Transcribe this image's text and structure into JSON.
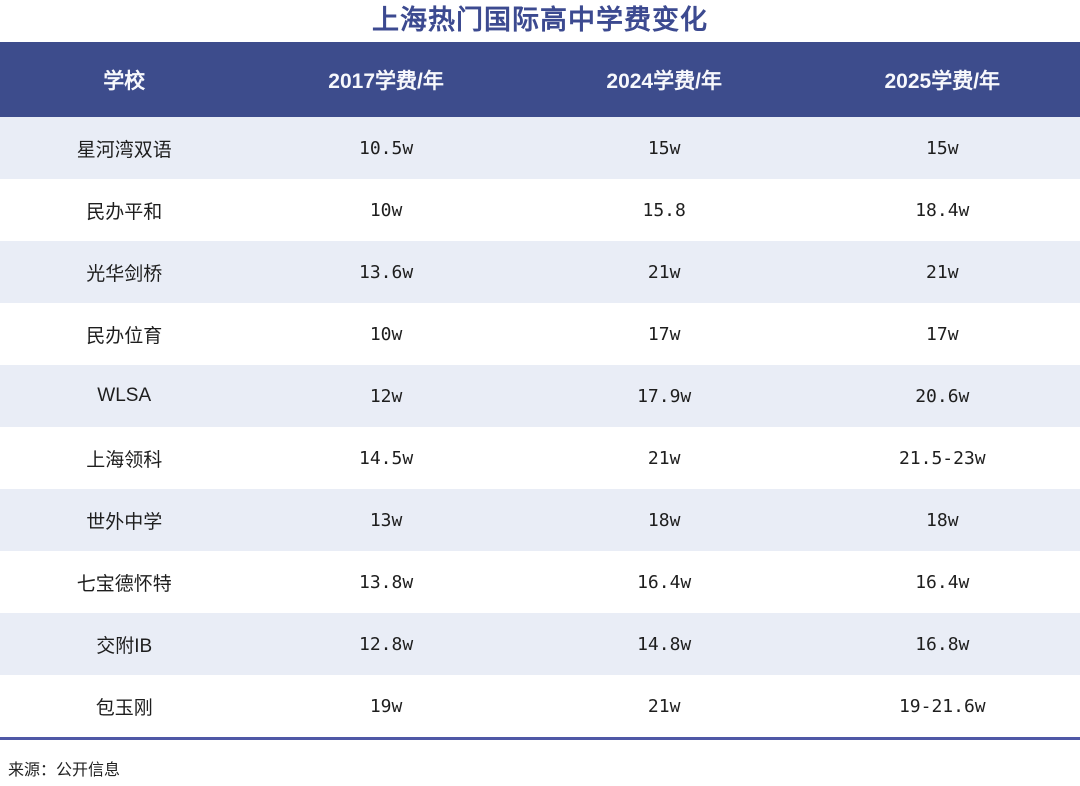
{
  "chart_data": {
    "type": "table",
    "title": "上海热门国际高中学费变化",
    "columns": [
      "学校",
      "2017学费/年",
      "2024学费/年",
      "2025学费/年"
    ],
    "rows": [
      [
        "星河湾双语",
        "10.5w",
        "15w",
        "15w"
      ],
      [
        "民办平和",
        "10w",
        "15.8",
        "18.4w"
      ],
      [
        "光华剑桥",
        "13.6w",
        "21w",
        "21w"
      ],
      [
        "民办位育",
        "10w",
        "17w",
        "17w"
      ],
      [
        "WLSA",
        "12w",
        "17.9w",
        "20.6w"
      ],
      [
        "上海领科",
        "14.5w",
        "21w",
        "21.5-23w"
      ],
      [
        "世外中学",
        "13w",
        "18w",
        "18w"
      ],
      [
        "七宝德怀特",
        "13.8w",
        "16.4w",
        "16.4w"
      ],
      [
        "交附IB",
        "12.8w",
        "14.8w",
        "16.8w"
      ],
      [
        "包玉刚",
        "19w",
        "21w",
        "19-21.6w"
      ]
    ],
    "source": "来源：公开信息",
    "layout": {
      "legend": "none",
      "grid": "off",
      "row_striping": "odd rows shaded"
    }
  },
  "colors": {
    "header_bg": "#3d4c8c",
    "header_text": "#f7f8fc",
    "title_text": "#3c4a90",
    "row_alt_bg": "#e9edf6",
    "row_bg": "#ffffff",
    "body_text": "#1e1e1e",
    "bottom_rule": "#4f58a6"
  }
}
